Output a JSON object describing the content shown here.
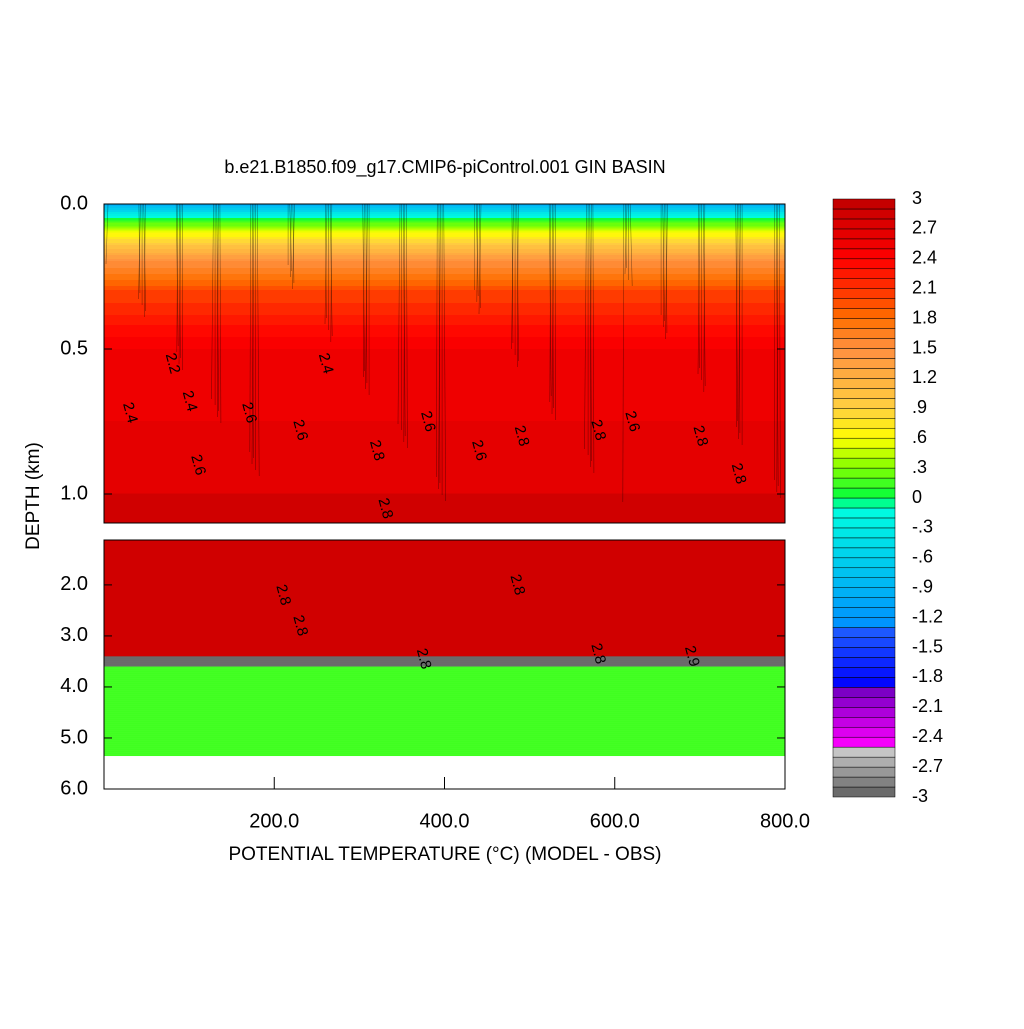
{
  "chart_data": {
    "type": "contour",
    "title": "b.e21.B1850.f09_g17.CMIP6-piControl.001 GIN BASIN",
    "xlabel": "POTENTIAL TEMPERATURE (°C) (MODEL - OBS)",
    "ylabel": "DEPTH (km)",
    "xlim": [
      0,
      800
    ],
    "xticks": [
      {
        "value": 200,
        "label": "200.0"
      },
      {
        "value": 400,
        "label": "400.0"
      },
      {
        "value": 600,
        "label": "600.0"
      },
      {
        "value": 800,
        "label": "800.0"
      }
    ],
    "panels": [
      {
        "ylim": [
          0,
          1.1
        ],
        "yticks": [
          {
            "value": 0,
            "label": "0.0"
          },
          0.5,
          {
            "value": 1,
            "label": "1.0"
          }
        ]
      },
      {
        "ylim": [
          1.12,
          6.0
        ],
        "yticks": [
          {
            "value": 2,
            "label": "2.0"
          },
          {
            "value": 3,
            "label": "3.0"
          },
          {
            "value": 4,
            "label": "4.0"
          },
          {
            "value": 5,
            "label": "5.0"
          },
          {
            "value": 6,
            "label": "6.0"
          }
        ]
      }
    ],
    "layers": [
      {
        "depth": [
          0,
          0.05
        ],
        "values": [
          -1.0,
          0.0
        ]
      },
      {
        "depth": [
          0.05,
          0.1
        ],
        "values": [
          0.0,
          0.6
        ]
      },
      {
        "depth": [
          0.1,
          0.2
        ],
        "values": [
          0.6,
          1.5
        ]
      },
      {
        "depth": [
          0.2,
          0.3
        ],
        "values": [
          1.5,
          2.0
        ]
      },
      {
        "depth": [
          0.3,
          0.5
        ],
        "values": [
          2.0,
          2.5
        ]
      },
      {
        "depth": [
          0.5,
          1.0
        ],
        "values": [
          2.5,
          2.7
        ]
      },
      {
        "depth": [
          1.0,
          3.4
        ],
        "values": [
          2.8,
          2.9
        ]
      },
      {
        "depth": [
          3.4,
          3.6
        ],
        "values": [
          -3,
          -3
        ]
      },
      {
        "depth": [
          3.6,
          5.35
        ],
        "values": [
          0.1,
          0.1
        ]
      }
    ],
    "colorbar": {
      "lim": [
        -3,
        3
      ],
      "step": 0.1,
      "ticks": [
        3,
        2.7,
        2.4,
        2.1,
        1.8,
        1.5,
        1.2,
        {
          "value": 0.9,
          "label": ".9"
        },
        {
          "value": 0.6,
          "label": ".6"
        },
        {
          "value": 0.3,
          "label": ".3"
        },
        0,
        {
          "value": -0.3,
          "label": "-.3"
        },
        {
          "value": -0.6,
          "label": "-.6"
        },
        {
          "value": -0.9,
          "label": "-.9"
        },
        -1.2,
        -1.5,
        -1.8,
        -2.1,
        -2.4,
        -2.7,
        -3
      ],
      "colormap": [
        {
          "value": -3,
          "color": "#606060"
        },
        {
          "value": -2.5,
          "color": "#d0d0d0"
        },
        {
          "value": -2.49,
          "color": "#ff00ff"
        },
        {
          "value": -1.9,
          "color": "#7000c0"
        },
        {
          "value": -1.89,
          "color": "#0000ff"
        },
        {
          "value": -1.3,
          "color": "#2060ff"
        },
        {
          "value": -1.29,
          "color": "#0090ff"
        },
        {
          "value": -0.1,
          "color": "#00ffe0"
        },
        {
          "value": 0,
          "color": "#00ff40"
        },
        {
          "value": 0.3,
          "color": "#80ff00"
        },
        {
          "value": 0.6,
          "color": "#ffff00"
        },
        {
          "value": 0.9,
          "color": "#ffd040"
        },
        {
          "value": 1.5,
          "color": "#ff9040"
        },
        {
          "value": 1.8,
          "color": "#ff7000"
        },
        {
          "value": 2.1,
          "color": "#ff3000"
        },
        {
          "value": 2.4,
          "color": "#ff0000"
        },
        {
          "value": 2.7,
          "color": "#e00000"
        },
        {
          "value": 3,
          "color": "#c00000"
        }
      ]
    },
    "annotations": [
      {
        "text": "2.4",
        "x": 30,
        "depth": 0.72
      },
      {
        "text": "2.6",
        "x": 110,
        "depth": 0.9
      },
      {
        "text": "2.4",
        "x": 100,
        "depth": 0.68
      },
      {
        "text": "2.6",
        "x": 170,
        "depth": 0.72
      },
      {
        "text": "2.6",
        "x": 230,
        "depth": 0.78
      },
      {
        "text": "2.8",
        "x": 320,
        "depth": 0.85
      },
      {
        "text": "2.6",
        "x": 380,
        "depth": 0.75
      },
      {
        "text": "2.6",
        "x": 440,
        "depth": 0.85
      },
      {
        "text": "2.8",
        "x": 490,
        "depth": 0.8
      },
      {
        "text": "2.8",
        "x": 580,
        "depth": 0.78
      },
      {
        "text": "2.6",
        "x": 620,
        "depth": 0.75
      },
      {
        "text": "2.8",
        "x": 700,
        "depth": 0.8
      },
      {
        "text": "2.8",
        "x": 745,
        "depth": 0.93
      },
      {
        "text": "2.8",
        "x": 330,
        "depth": 1.05
      },
      {
        "text": "2.2",
        "x": 80,
        "depth": 0.55
      },
      {
        "text": "2.4",
        "x": 260,
        "depth": 0.55
      },
      {
        "text": "2.8",
        "x": 210,
        "depth": 2.2
      },
      {
        "text": "2.8",
        "x": 230,
        "depth": 2.8
      },
      {
        "text": "2.8",
        "x": 485,
        "depth": 2.0
      },
      {
        "text": "2.8",
        "x": 375,
        "depth": 3.45
      },
      {
        "text": "2.8",
        "x": 580,
        "depth": 3.35
      },
      {
        "text": "2.9",
        "x": 690,
        "depth": 3.4
      }
    ]
  }
}
